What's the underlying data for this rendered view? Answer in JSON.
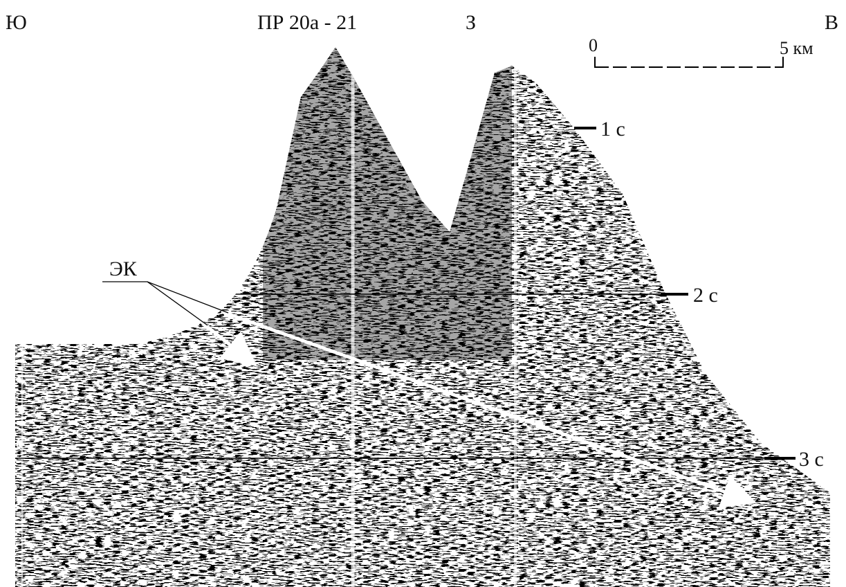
{
  "header": {
    "left": "Ю",
    "profile": "ПР 20а - 21",
    "center": "З",
    "right": "В"
  },
  "scale": {
    "start": "0",
    "end": "5 км"
  },
  "time_marks": [
    "1 с",
    "2 с",
    "3 с"
  ],
  "annotation": "ЭК"
}
